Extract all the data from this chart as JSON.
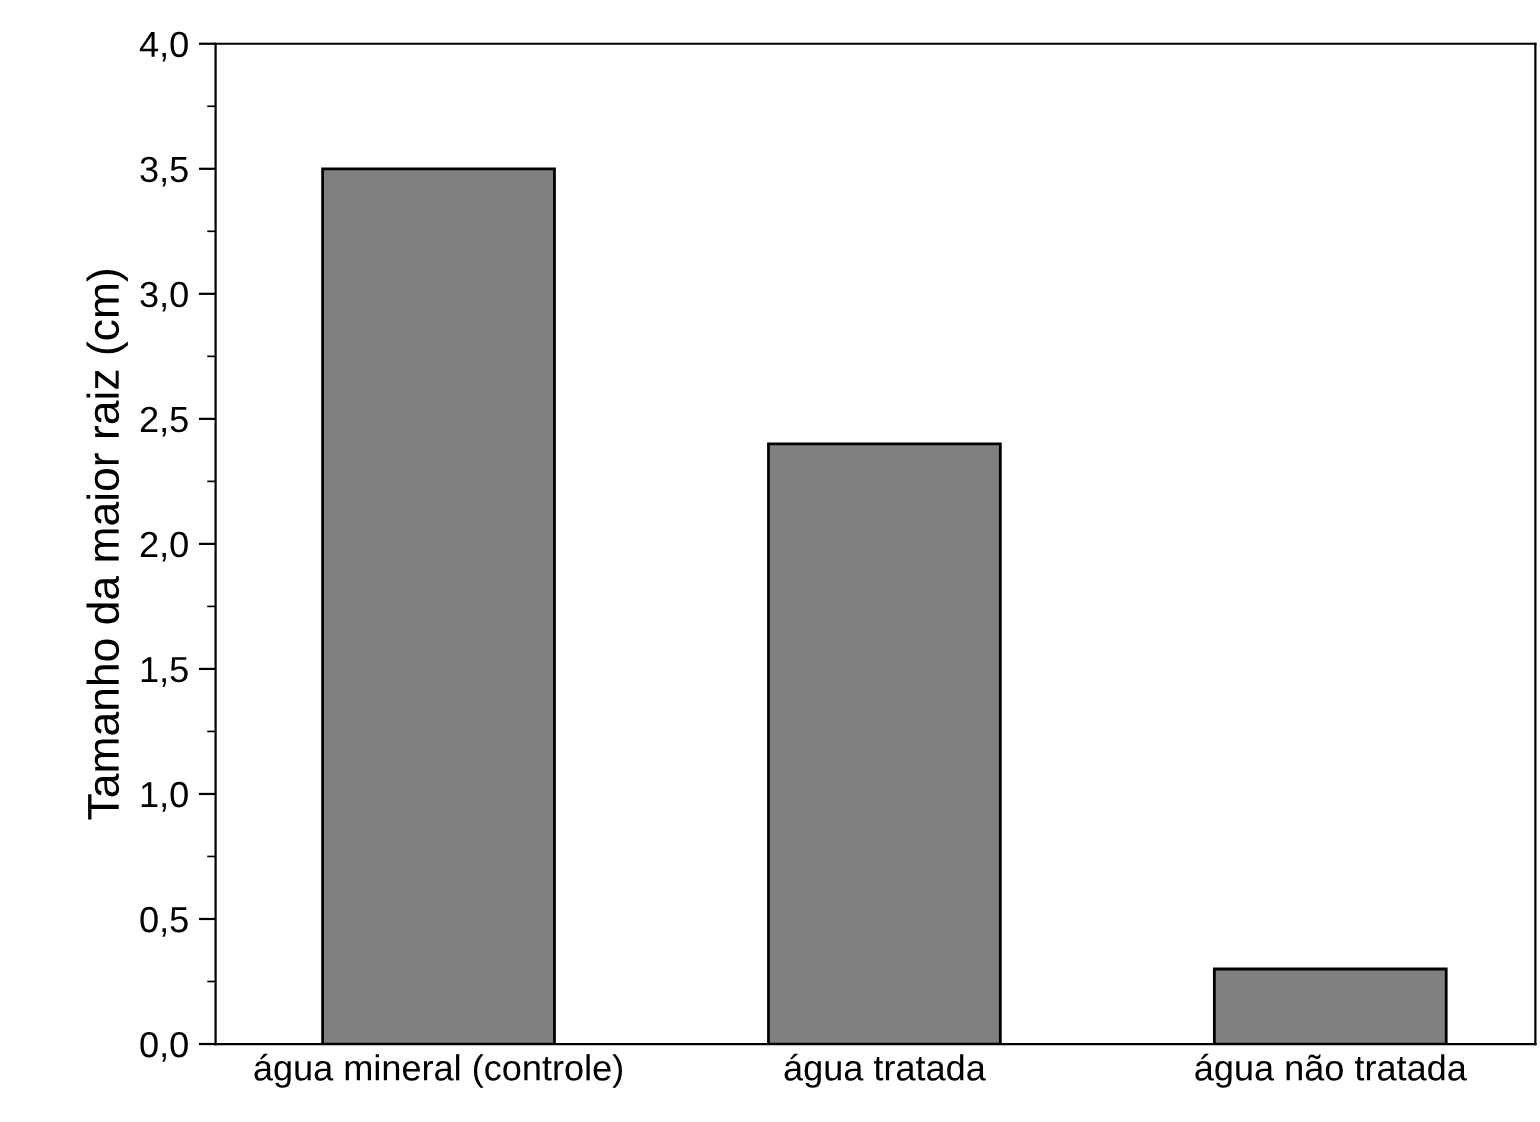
{
  "chart_data": {
    "type": "bar",
    "ylabel": "Tamanho da maior raiz (cm)",
    "categories": [
      "água mineral (controle)",
      "água tratada",
      "água não tratada"
    ],
    "values": [
      3.5,
      2.4,
      0.3
    ],
    "color": "#808080",
    "ylim": [
      0,
      4.0
    ],
    "yticks": [
      {
        "value": 0,
        "label": "0,0"
      },
      {
        "value": 0.5,
        "label": "0,5"
      },
      {
        "value": 1.0,
        "label": "1,0"
      },
      {
        "value": 1.5,
        "label": "1,5"
      },
      {
        "value": 2.0,
        "label": "2,0"
      },
      {
        "value": 2.5,
        "label": "2,5"
      },
      {
        "value": 3.0,
        "label": "3,0"
      },
      {
        "value": 3.5,
        "label": "3,5"
      },
      {
        "value": 4.0,
        "label": "4,0"
      }
    ],
    "grid": false
  }
}
